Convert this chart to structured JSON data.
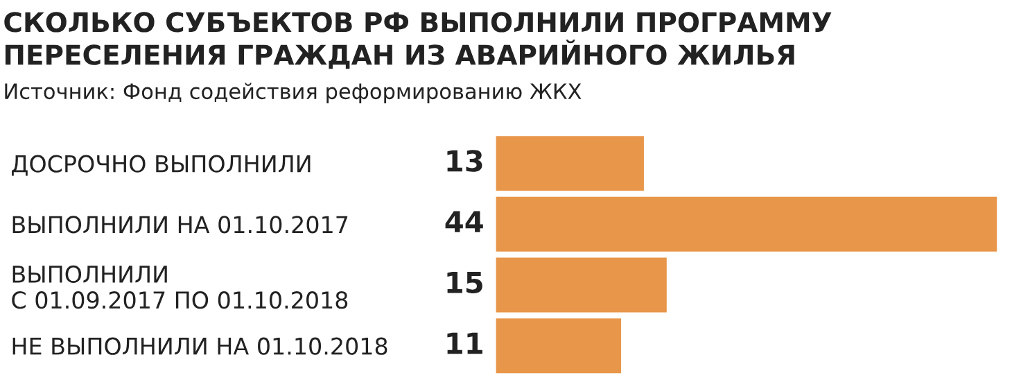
{
  "chart_data": {
    "type": "bar",
    "orientation": "horizontal",
    "title": "СКОЛЬКО СУБЪЕКТОВ РФ ВЫПОЛНИЛИ ПРОГРАММУ\nПЕРЕСЕЛЕНИЯ ГРАЖДАН ИЗ АВАРИЙНОГО ЖИЛЬЯ",
    "annotations": [
      "Источник: Фонд содействия реформированию ЖКХ"
    ],
    "categories": [
      "ДОСРОЧНО ВЫПОЛНИЛИ",
      "ВЫПОЛНИЛИ НА 01.10.2017",
      "ВЫПОЛНИЛИ\nС 01.09.2017 ПО 01.10.2018",
      "НЕ ВЫПОЛНИЛИ НА 01.10.2018"
    ],
    "values": [
      13,
      44,
      15,
      11
    ],
    "color": "#e8964a",
    "data_labels": true,
    "grid": false,
    "legend": false
  }
}
